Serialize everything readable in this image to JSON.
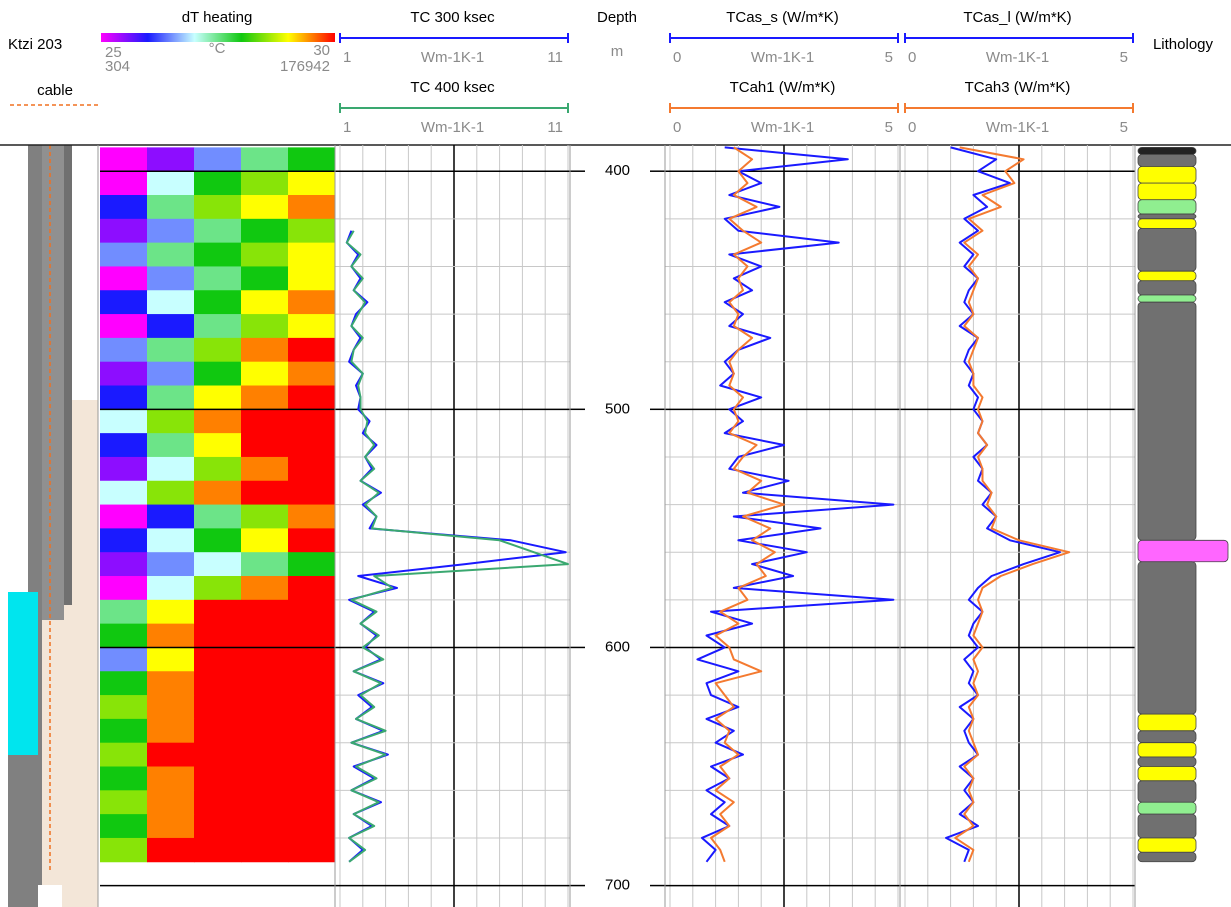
{
  "chart_data": [
    {
      "type": "well",
      "title": "Ktzi 203",
      "legend": {
        "name": "cable",
        "color": "#f07020"
      }
    },
    {
      "type": "heatmap",
      "title": "dT heating",
      "unit": "°C",
      "vlim": [
        25,
        30
      ],
      "tlim": [
        304,
        176942
      ],
      "colors": [
        "#ff00ff",
        "#1a1aff",
        "#c8ffff",
        "#10c810",
        "#ffff00",
        "#ff0000"
      ],
      "y": [
        390,
        400,
        410,
        420,
        430,
        440,
        450,
        460,
        470,
        480,
        490,
        500,
        510,
        520,
        530,
        540,
        550,
        560,
        570,
        580,
        590,
        600,
        610,
        620,
        630,
        640,
        650,
        660,
        670,
        680,
        690
      ],
      "values": [
        [
          25,
          25.5,
          26.5,
          27.5,
          28
        ],
        [
          25,
          27,
          28,
          28.5,
          29
        ],
        [
          26,
          27.5,
          28.5,
          29,
          29.5
        ],
        [
          25.5,
          26.5,
          27.5,
          28,
          28.5
        ],
        [
          26.5,
          27.5,
          28,
          28.5,
          29
        ],
        [
          25,
          26.5,
          27.5,
          28,
          29
        ],
        [
          26,
          27,
          28,
          29,
          29.5
        ],
        [
          25,
          26,
          27.5,
          28.5,
          29
        ],
        [
          26.5,
          27.5,
          28.5,
          29.5,
          30
        ],
        [
          25.5,
          26.5,
          28,
          29,
          29.5
        ],
        [
          26,
          27.5,
          29,
          29.5,
          30
        ],
        [
          27,
          28.5,
          29.5,
          30,
          30
        ],
        [
          26,
          27.5,
          29,
          30,
          30
        ],
        [
          25.5,
          27,
          28.5,
          29.5,
          30
        ],
        [
          27,
          28.5,
          29.5,
          30,
          30
        ],
        [
          25,
          26,
          27.5,
          28.5,
          29.5
        ],
        [
          26,
          27,
          28,
          29,
          30
        ],
        [
          25.5,
          26.5,
          27,
          27.5,
          28
        ],
        [
          25,
          27,
          28.5,
          29.5,
          30
        ],
        [
          27.5,
          29,
          30,
          30,
          30
        ],
        [
          28,
          29.5,
          30,
          30,
          30
        ],
        [
          26.5,
          29,
          30,
          30,
          30
        ],
        [
          28,
          29.5,
          30,
          30,
          30
        ],
        [
          28.5,
          29.5,
          30,
          30,
          30
        ],
        [
          28,
          29.5,
          30,
          30,
          30
        ],
        [
          28.5,
          30,
          30,
          30,
          30
        ],
        [
          28,
          29.5,
          30,
          30,
          30
        ],
        [
          28.5,
          29.5,
          30,
          30,
          30
        ],
        [
          28,
          29.5,
          30,
          30,
          30
        ],
        [
          28.5,
          30,
          30,
          30,
          30
        ]
      ]
    },
    {
      "type": "log",
      "xgrid": [
        1,
        2,
        3,
        4,
        5,
        6,
        7,
        8,
        9,
        10,
        11
      ],
      "xgrid_major": [
        6
      ],
      "y": [
        390,
        395,
        400,
        405,
        410,
        415,
        420,
        425,
        430,
        435,
        440,
        445,
        450,
        455,
        460,
        465,
        470,
        475,
        480,
        485,
        490,
        495,
        500,
        505,
        510,
        515,
        520,
        525,
        530,
        535,
        540,
        545,
        550,
        555,
        560,
        565,
        570,
        575,
        580,
        585,
        590,
        595,
        600,
        605,
        610,
        615,
        620,
        625,
        630,
        635,
        640,
        645,
        650,
        655,
        660,
        665,
        670,
        675,
        680,
        685,
        690
      ],
      "series": [
        {
          "name": "TC 300 ksec",
          "color": "#1a1aff",
          "unit": "Wm-1K-1",
          "xlim": [
            1,
            11
          ],
          "values": [
            null,
            null,
            null,
            null,
            null,
            null,
            null,
            1.5,
            1.3,
            1.8,
            1.5,
            1.9,
            1.6,
            2.2,
            1.7,
            1.5,
            1.9,
            1.6,
            1.4,
            2.0,
            1.7,
            1.9,
            1.8,
            2.3,
            2.0,
            2.6,
            2.1,
            2.4,
            1.9,
            2.8,
            2.0,
            2.6,
            2.3,
            8.5,
            10.9,
            6.5,
            1.8,
            3.5,
            1.4,
            2.5,
            1.9,
            2.6,
            2.1,
            2.8,
            1.6,
            2.9,
            1.8,
            2.4,
            1.7,
            2.9,
            1.5,
            3.1,
            1.6,
            2.5,
            1.5,
            2.8,
            1.6,
            2.4,
            1.4,
            2.0,
            1.4
          ]
        },
        {
          "name": "TC 400 ksec",
          "color": "#3aa870",
          "unit": "Wm-1K-1",
          "xlim": [
            1,
            11
          ],
          "values": [
            null,
            null,
            null,
            null,
            null,
            null,
            null,
            1.6,
            1.3,
            1.9,
            1.5,
            2.0,
            1.6,
            2.1,
            1.8,
            1.5,
            2.0,
            1.6,
            1.5,
            2.0,
            1.8,
            1.9,
            1.9,
            2.2,
            2.1,
            2.5,
            2.1,
            2.5,
            1.9,
            2.7,
            2.1,
            2.6,
            2.4,
            8.0,
            9.5,
            11.0,
            2.5,
            3.3,
            1.5,
            2.6,
            1.9,
            2.7,
            2.0,
            2.9,
            1.6,
            2.8,
            1.9,
            2.5,
            1.7,
            3.0,
            1.5,
            3.0,
            1.7,
            2.6,
            1.5,
            2.7,
            1.6,
            2.5,
            1.4,
            2.1,
            1.4
          ]
        }
      ]
    },
    {
      "type": "depth",
      "title": "Depth",
      "unit": "m",
      "ylim": [
        389,
        709
      ],
      "yticks": [
        400,
        500,
        600,
        700
      ],
      "yminor": [
        420,
        440,
        460,
        480,
        520,
        540,
        560,
        580,
        620,
        640,
        660,
        680
      ]
    },
    {
      "type": "log",
      "xgrid": [
        0,
        0.5,
        1,
        1.5,
        2,
        2.5,
        3,
        3.5,
        4,
        4.5,
        5
      ],
      "xgrid_major": [
        2.5
      ],
      "y": [
        390,
        395,
        400,
        405,
        410,
        415,
        420,
        425,
        430,
        435,
        440,
        445,
        450,
        455,
        460,
        465,
        470,
        475,
        480,
        485,
        490,
        495,
        500,
        505,
        510,
        515,
        520,
        525,
        530,
        535,
        540,
        545,
        550,
        555,
        560,
        565,
        570,
        575,
        580,
        585,
        590,
        595,
        600,
        605,
        610,
        615,
        620,
        625,
        630,
        635,
        640,
        645,
        650,
        655,
        660,
        665,
        670,
        675,
        680,
        685,
        690
      ],
      "series": [
        {
          "name": "TCas_s (W/m*K)",
          "color": "#1a1aff",
          "unit": "Wm-1K-1",
          "xlim": [
            0,
            5
          ],
          "values": [
            1.2,
            3.9,
            1.5,
            2.0,
            1.3,
            2.4,
            1.2,
            1.5,
            3.7,
            1.3,
            2.0,
            1.4,
            1.8,
            1.2,
            1.6,
            1.3,
            2.2,
            1.5,
            1.2,
            1.4,
            1.1,
            2.0,
            1.3,
            1.6,
            1.2,
            2.5,
            1.5,
            1.3,
            2.6,
            1.6,
            4.9,
            1.4,
            3.3,
            1.5,
            3.0,
            1.8,
            2.7,
            1.4,
            4.9,
            0.9,
            1.8,
            0.8,
            1.2,
            0.6,
            1.5,
            0.8,
            0.9,
            1.5,
            0.8,
            1.4,
            1.0,
            1.6,
            0.9,
            1.3,
            0.8,
            1.2,
            0.9,
            1.3,
            0.7,
            1.0,
            0.8
          ]
        },
        {
          "name": "TCah1 (W/m*K)",
          "color": "#f47a30",
          "unit": "Wm-1K-1",
          "xlim": [
            0,
            5
          ],
          "values": [
            1.4,
            1.8,
            1.5,
            1.7,
            1.4,
            1.9,
            1.3,
            1.6,
            2.0,
            1.4,
            1.7,
            1.5,
            1.6,
            1.3,
            1.5,
            1.4,
            1.8,
            1.5,
            1.3,
            1.4,
            1.3,
            1.6,
            1.4,
            1.5,
            1.3,
            1.9,
            1.6,
            1.4,
            2.0,
            1.7,
            2.5,
            1.6,
            2.2,
            1.8,
            2.3,
            1.9,
            2.1,
            1.5,
            1.7,
            1.1,
            1.5,
            1.0,
            1.3,
            1.4,
            2.0,
            1.0,
            1.2,
            1.4,
            1.0,
            1.3,
            1.2,
            1.5,
            1.1,
            1.3,
            1.0,
            1.4,
            1.1,
            1.3,
            0.9,
            1.1,
            1.2
          ]
        }
      ]
    },
    {
      "type": "log",
      "xgrid": [
        0,
        0.5,
        1,
        1.5,
        2,
        2.5,
        3,
        3.5,
        4,
        4.5,
        5
      ],
      "xgrid_major": [
        2.5
      ],
      "y": [
        390,
        395,
        400,
        405,
        410,
        415,
        420,
        425,
        430,
        435,
        440,
        445,
        450,
        455,
        460,
        465,
        470,
        475,
        480,
        485,
        490,
        495,
        500,
        505,
        510,
        515,
        520,
        525,
        530,
        535,
        540,
        545,
        550,
        555,
        560,
        565,
        570,
        575,
        580,
        585,
        590,
        595,
        600,
        605,
        610,
        615,
        620,
        625,
        630,
        635,
        640,
        645,
        650,
        655,
        660,
        665,
        670,
        675,
        680,
        685,
        690
      ],
      "series": [
        {
          "name": "TCas_l (W/m*K)",
          "color": "#1a1aff",
          "unit": "Wm-1K-1",
          "xlim": [
            0,
            5
          ],
          "values": [
            1.0,
            2.0,
            1.6,
            2.3,
            1.5,
            1.8,
            1.3,
            1.6,
            1.2,
            1.5,
            1.3,
            1.6,
            1.4,
            1.3,
            1.5,
            1.2,
            1.6,
            1.4,
            1.3,
            1.5,
            1.4,
            1.6,
            1.5,
            1.7,
            1.6,
            1.8,
            1.5,
            1.7,
            1.6,
            1.9,
            1.7,
            2.0,
            1.8,
            2.3,
            3.4,
            2.6,
            1.9,
            1.6,
            1.4,
            1.7,
            1.5,
            1.4,
            1.6,
            1.3,
            1.5,
            1.4,
            1.6,
            1.2,
            1.5,
            1.3,
            1.4,
            1.6,
            1.2,
            1.5,
            1.3,
            1.5,
            1.2,
            1.6,
            0.9,
            1.4,
            1.3
          ]
        },
        {
          "name": "TCah3 (W/m*K)",
          "color": "#f47a30",
          "unit": "Wm-1K-1",
          "xlim": [
            0,
            5
          ],
          "values": [
            1.2,
            2.6,
            2.2,
            2.4,
            1.7,
            2.1,
            1.4,
            1.7,
            1.3,
            1.6,
            1.4,
            1.6,
            1.5,
            1.4,
            1.5,
            1.3,
            1.6,
            1.5,
            1.4,
            1.5,
            1.5,
            1.7,
            1.6,
            1.7,
            1.6,
            1.8,
            1.6,
            1.7,
            1.7,
            1.9,
            1.8,
            2.0,
            1.9,
            2.5,
            3.6,
            2.8,
            2.1,
            1.7,
            1.6,
            1.7,
            1.6,
            1.5,
            1.7,
            1.5,
            1.6,
            1.5,
            1.6,
            1.4,
            1.5,
            1.4,
            1.5,
            1.6,
            1.3,
            1.5,
            1.4,
            1.5,
            1.3,
            1.5,
            1.1,
            1.5,
            1.4
          ]
        }
      ]
    },
    {
      "type": "lithology",
      "title": "Lithology",
      "intervals": [
        {
          "top": 390,
          "bottom": 393,
          "color": "#222222"
        },
        {
          "top": 393,
          "bottom": 398,
          "color": "#707070"
        },
        {
          "top": 398,
          "bottom": 405,
          "color": "#ffff00"
        },
        {
          "top": 405,
          "bottom": 412,
          "color": "#ffff00"
        },
        {
          "top": 412,
          "bottom": 418,
          "color": "#90ee90"
        },
        {
          "top": 418,
          "bottom": 420,
          "color": "#707070"
        },
        {
          "top": 420,
          "bottom": 424,
          "color": "#ffff00"
        },
        {
          "top": 424,
          "bottom": 442,
          "color": "#707070"
        },
        {
          "top": 442,
          "bottom": 446,
          "color": "#ffff00"
        },
        {
          "top": 446,
          "bottom": 452,
          "color": "#707070"
        },
        {
          "top": 452,
          "bottom": 455,
          "color": "#90ee90"
        },
        {
          "top": 455,
          "bottom": 555,
          "color": "#707070"
        },
        {
          "top": 555,
          "bottom": 564,
          "color": "#ff66ff"
        },
        {
          "top": 564,
          "bottom": 628,
          "color": "#707070"
        },
        {
          "top": 628,
          "bottom": 635,
          "color": "#ffff00"
        },
        {
          "top": 635,
          "bottom": 640,
          "color": "#707070"
        },
        {
          "top": 640,
          "bottom": 646,
          "color": "#ffff00"
        },
        {
          "top": 646,
          "bottom": 650,
          "color": "#707070"
        },
        {
          "top": 650,
          "bottom": 656,
          "color": "#ffff00"
        },
        {
          "top": 656,
          "bottom": 665,
          "color": "#707070"
        },
        {
          "top": 665,
          "bottom": 670,
          "color": "#90ee90"
        },
        {
          "top": 670,
          "bottom": 680,
          "color": "#707070"
        },
        {
          "top": 680,
          "bottom": 686,
          "color": "#ffff00"
        },
        {
          "top": 686,
          "bottom": 690,
          "color": "#707070"
        }
      ]
    }
  ]
}
